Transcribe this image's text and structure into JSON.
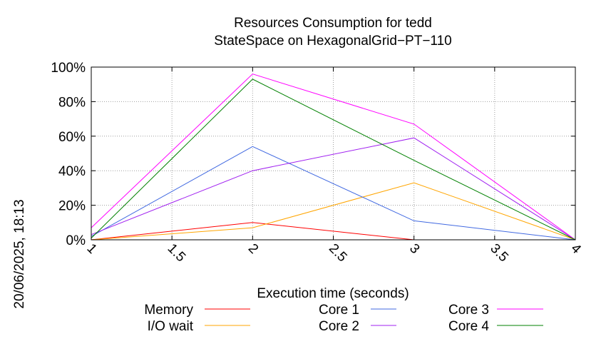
{
  "chart_data": {
    "type": "line",
    "title": "Resources Consumption for tedd",
    "subtitle": "StateSpace on HexagonalGrid−PT−110",
    "xlabel": "Execution time (seconds)",
    "ylabel": "",
    "side_label": "20/06/2025, 18:13",
    "xlim": [
      1,
      4
    ],
    "ylim": [
      0,
      100
    ],
    "x_ticks": [
      "1",
      "1.5",
      "2",
      "2.5",
      "3",
      "3.5",
      "4"
    ],
    "x_tick_values": [
      1,
      1.5,
      2,
      2.5,
      3,
      3.5,
      4
    ],
    "y_ticks": [
      "0%",
      "20%",
      "40%",
      "60%",
      "80%",
      "100%"
    ],
    "y_tick_values": [
      0,
      20,
      40,
      60,
      80,
      100
    ],
    "grid": true,
    "legend_position": "bottom",
    "x": [
      1,
      2,
      3,
      4
    ],
    "series": [
      {
        "name": "Memory",
        "color": "#ff0000",
        "values": [
          0,
          10,
          0,
          0
        ]
      },
      {
        "name": "I/O wait",
        "color": "#ffa500",
        "values": [
          0,
          7,
          33,
          0
        ]
      },
      {
        "name": "Core 1",
        "color": "#4169e1",
        "values": [
          2,
          54,
          11,
          0
        ]
      },
      {
        "name": "Core 2",
        "color": "#a020f0",
        "values": [
          3,
          40,
          59,
          0
        ]
      },
      {
        "name": "Core 3",
        "color": "#ff00ff",
        "values": [
          7,
          96,
          67,
          0
        ]
      },
      {
        "name": "Core 4",
        "color": "#008000",
        "values": [
          1,
          93,
          46,
          0
        ]
      }
    ]
  }
}
